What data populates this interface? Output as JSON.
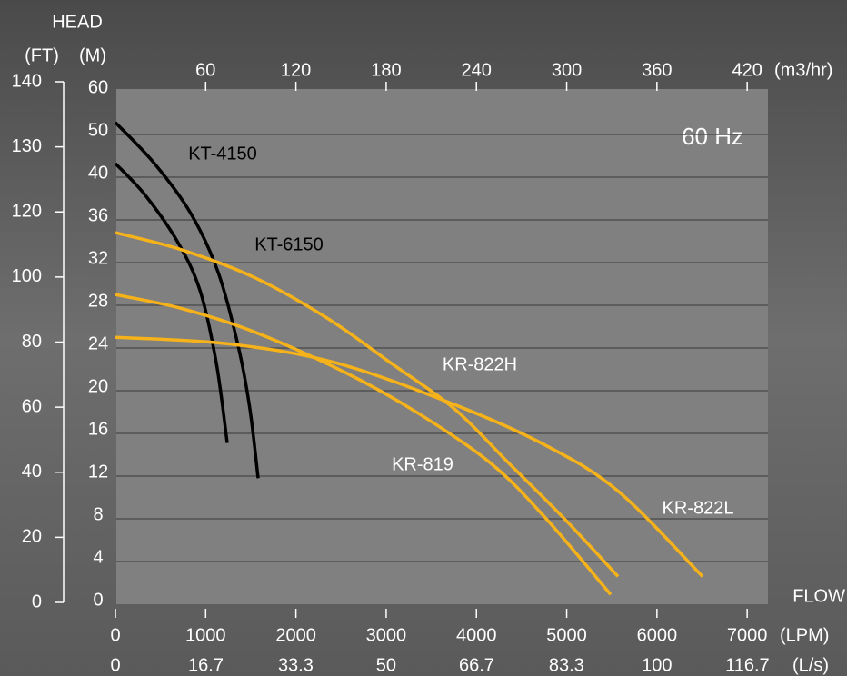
{
  "chart_data": {
    "type": "line",
    "ylabel": "HEAD",
    "yunit": "(M)",
    "ylim": [
      0,
      60
    ],
    "yticks": [
      0,
      4,
      8,
      12,
      16,
      20,
      24,
      28,
      32,
      36,
      40,
      50,
      60
    ],
    "y2unit": "(FT)",
    "y2lim": [
      0,
      140
    ],
    "y2ticks": [
      0,
      20,
      40,
      60,
      80,
      100,
      120,
      130,
      140
    ],
    "xlabel": "FLOW",
    "xunit": "(LPM)",
    "xlim": [
      0,
      7230
    ],
    "xticks": [
      0,
      1000,
      2000,
      3000,
      4000,
      5000,
      6000,
      7000
    ],
    "x2unit": "(L/s)",
    "x2lim": [
      0,
      120.5
    ],
    "x2ticks": [
      0,
      16.7,
      33.3,
      50,
      66.7,
      83.3,
      100,
      116.7
    ],
    "x3unit": "(m3/hr)",
    "x3lim": [
      0,
      433.8
    ],
    "x3ticks": [
      60,
      120,
      180,
      240,
      300,
      360,
      420
    ],
    "annotation": "60 Hz",
    "grid": true,
    "series": [
      {
        "name": "KT-4150",
        "color": "#000000",
        "x": [
          0,
          332,
          685,
          937,
          1118,
          1239
        ],
        "values": [
          43.2,
          38.3,
          34.0,
          29.4,
          22.6,
          15.1
        ]
      },
      {
        "name": "KT-6150",
        "color": "#000000",
        "x": [
          0,
          433,
          836,
          1138,
          1360,
          1490,
          1581
        ],
        "values": [
          52.8,
          43.2,
          36.6,
          31.1,
          24.2,
          18.3,
          11.8
        ]
      },
      {
        "name": "KR-822H",
        "color": "#f5b21a",
        "x": [
          0,
          735,
          1541,
          2346,
          3051,
          3756,
          4360,
          4964,
          5569
        ],
        "values": [
          34.8,
          33.2,
          30.6,
          26.8,
          22.6,
          18.3,
          13.2,
          8.1,
          2.6
        ]
      },
      {
        "name": "KR-819",
        "color": "#f5b21a",
        "x": [
          0,
          735,
          1541,
          2548,
          3353,
          4159,
          4763,
          5488
        ],
        "values": [
          29.0,
          27.7,
          25.5,
          21.7,
          17.9,
          13.2,
          8.1,
          0.9
        ]
      },
      {
        "name": "KR-822L",
        "color": "#f5b21a",
        "x": [
          0,
          1239,
          2447,
          3756,
          4763,
          5569,
          6505
        ],
        "values": [
          25.0,
          24.4,
          22.6,
          18.7,
          14.9,
          10.6,
          2.6
        ]
      }
    ]
  }
}
